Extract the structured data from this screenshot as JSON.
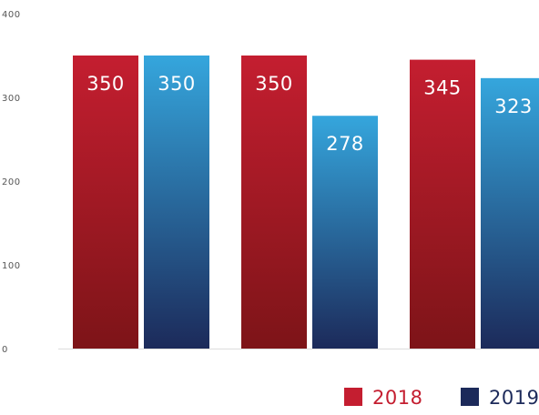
{
  "chart_data": {
    "type": "bar",
    "categories": [
      "",
      "",
      ""
    ],
    "series": [
      {
        "name": "2018",
        "values": [
          350,
          350,
          345
        ],
        "color": "#c41e30",
        "color_dark": "#7d1418"
      },
      {
        "name": "2019",
        "values": [
          350,
          278,
          323
        ],
        "color": "#35a6dd",
        "color_dark": "#1c2a5a"
      }
    ],
    "ylim": [
      0,
      400
    ],
    "yticks": [
      0,
      100,
      200,
      300,
      400
    ],
    "data_labels": true,
    "legend": {
      "position": "bottom-right",
      "entries": [
        "2018",
        "2019"
      ]
    },
    "grid": false,
    "title": "",
    "xlabel": "",
    "ylabel": ""
  }
}
